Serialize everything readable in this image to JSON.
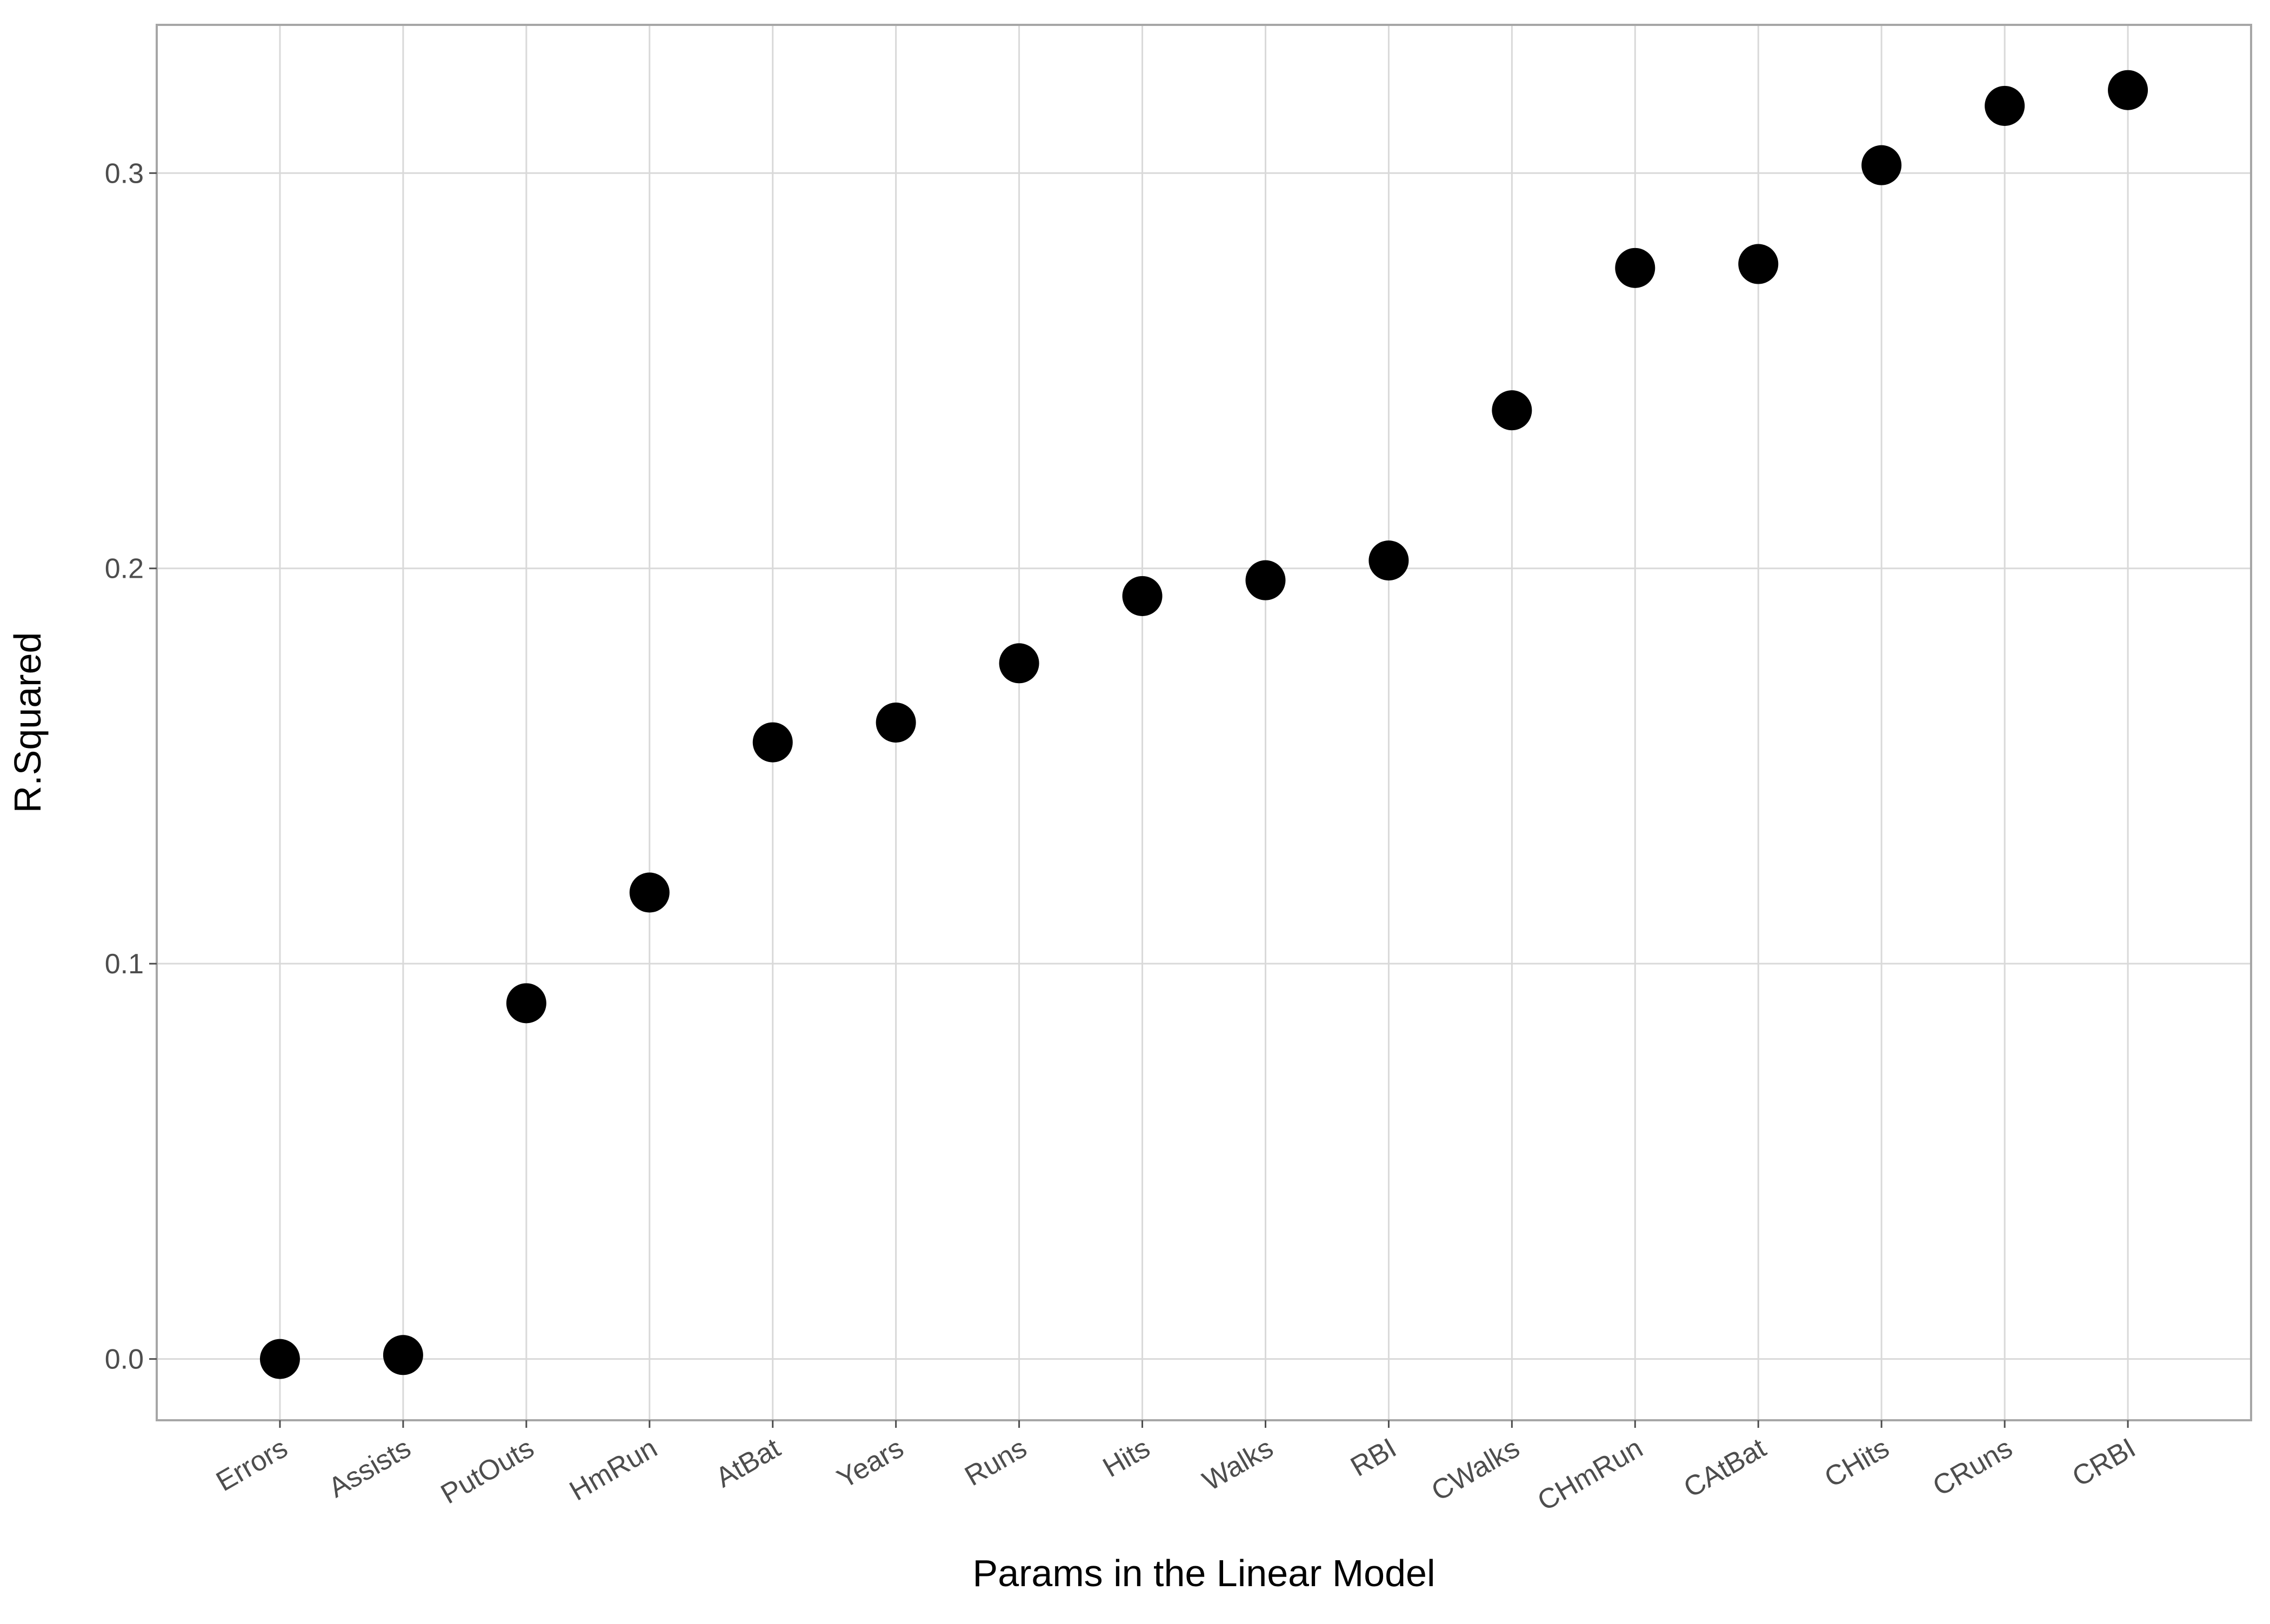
{
  "chart_data": {
    "type": "scatter",
    "title": "",
    "xlabel": "Params in the Linear Model",
    "ylabel": "R.Squared",
    "categories": [
      "Errors",
      "Assists",
      "PutOuts",
      "HmRun",
      "AtBat",
      "Years",
      "Runs",
      "Hits",
      "Walks",
      "RBI",
      "CWalks",
      "CHmRun",
      "CAtBat",
      "CHits",
      "CRuns",
      "CRBI"
    ],
    "values": [
      0.0,
      0.001,
      0.09,
      0.118,
      0.156,
      0.161,
      0.176,
      0.193,
      0.197,
      0.202,
      0.24,
      0.276,
      0.277,
      0.302,
      0.317,
      0.321
    ],
    "ylim": [
      -0.0155,
      0.3375
    ],
    "yticks": [
      0.0,
      0.1,
      0.2,
      0.3
    ],
    "ytick_labels": [
      "0.0",
      "0.1",
      "0.2",
      "0.3"
    ],
    "grid": true,
    "legend": "none",
    "point_color": "#000000",
    "grid_color": "#d9d9d9",
    "border_color": "#a6a6a6"
  }
}
